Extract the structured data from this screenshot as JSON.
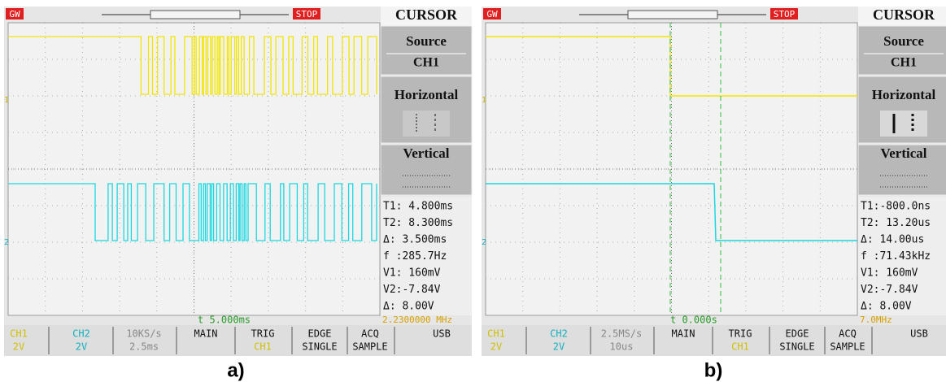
{
  "panels": [
    {
      "label": "a)",
      "header": {
        "brand": "GW",
        "status": "STOP"
      },
      "markers": {
        "ch1": "1",
        "ch2": "2"
      },
      "menu": {
        "title": "CURSOR",
        "source_label": "Source",
        "source": "CH1",
        "horizontal": "Horizontal",
        "vertical": "Vertical"
      },
      "readouts": [
        "T1: 4.800ms",
        "T2: 8.300ms",
        "Δ: 3.500ms",
        "f :285.7Hz",
        "V1: 160mV",
        "V2:-7.84V",
        "Δ: 8.00V"
      ],
      "time_marker": "t 5.000ms",
      "frequency": "2.2300000 MHz",
      "footer": {
        "ch1": "CH1",
        "ch1_scale": "2V",
        "ch2": "CH2",
        "ch2_scale": "2V",
        "rate": "10KS/s",
        "timebase": "2.5ms",
        "mode": "MAIN",
        "trig": "TRIG",
        "trig_source": "CH1",
        "edge": "EDGE",
        "single": "SINGLE",
        "acq": "ACQ",
        "sample": "SAMPLE",
        "usb": "USB"
      }
    },
    {
      "label": "b)",
      "header": {
        "brand": "GW",
        "status": "STOP"
      },
      "markers": {
        "ch1": "1",
        "ch2": "2"
      },
      "menu": {
        "title": "CURSOR",
        "source_label": "Source",
        "source": "CH1",
        "horizontal": "Horizontal",
        "vertical": "Vertical"
      },
      "readouts": [
        "T1:-800.0ns",
        "T2: 13.20us",
        "Δ: 14.00us",
        "f :71.43kHz",
        "V1: 160mV",
        "V2:-7.84V",
        "Δ: 8.00V"
      ],
      "time_marker": "t 0.000s",
      "frequency": "7.0MHz",
      "footer": {
        "ch1": "CH1",
        "ch1_scale": "2V",
        "ch2": "CH2",
        "ch2_scale": "2V",
        "rate": "2.5MS/s",
        "timebase": "10us",
        "mode": "MAIN",
        "trig": "TRIG",
        "trig_source": "CH1",
        "edge": "EDGE",
        "single": "SINGLE",
        "acq": "ACQ",
        "sample": "SAMPLE",
        "usb": "USB"
      }
    }
  ]
}
